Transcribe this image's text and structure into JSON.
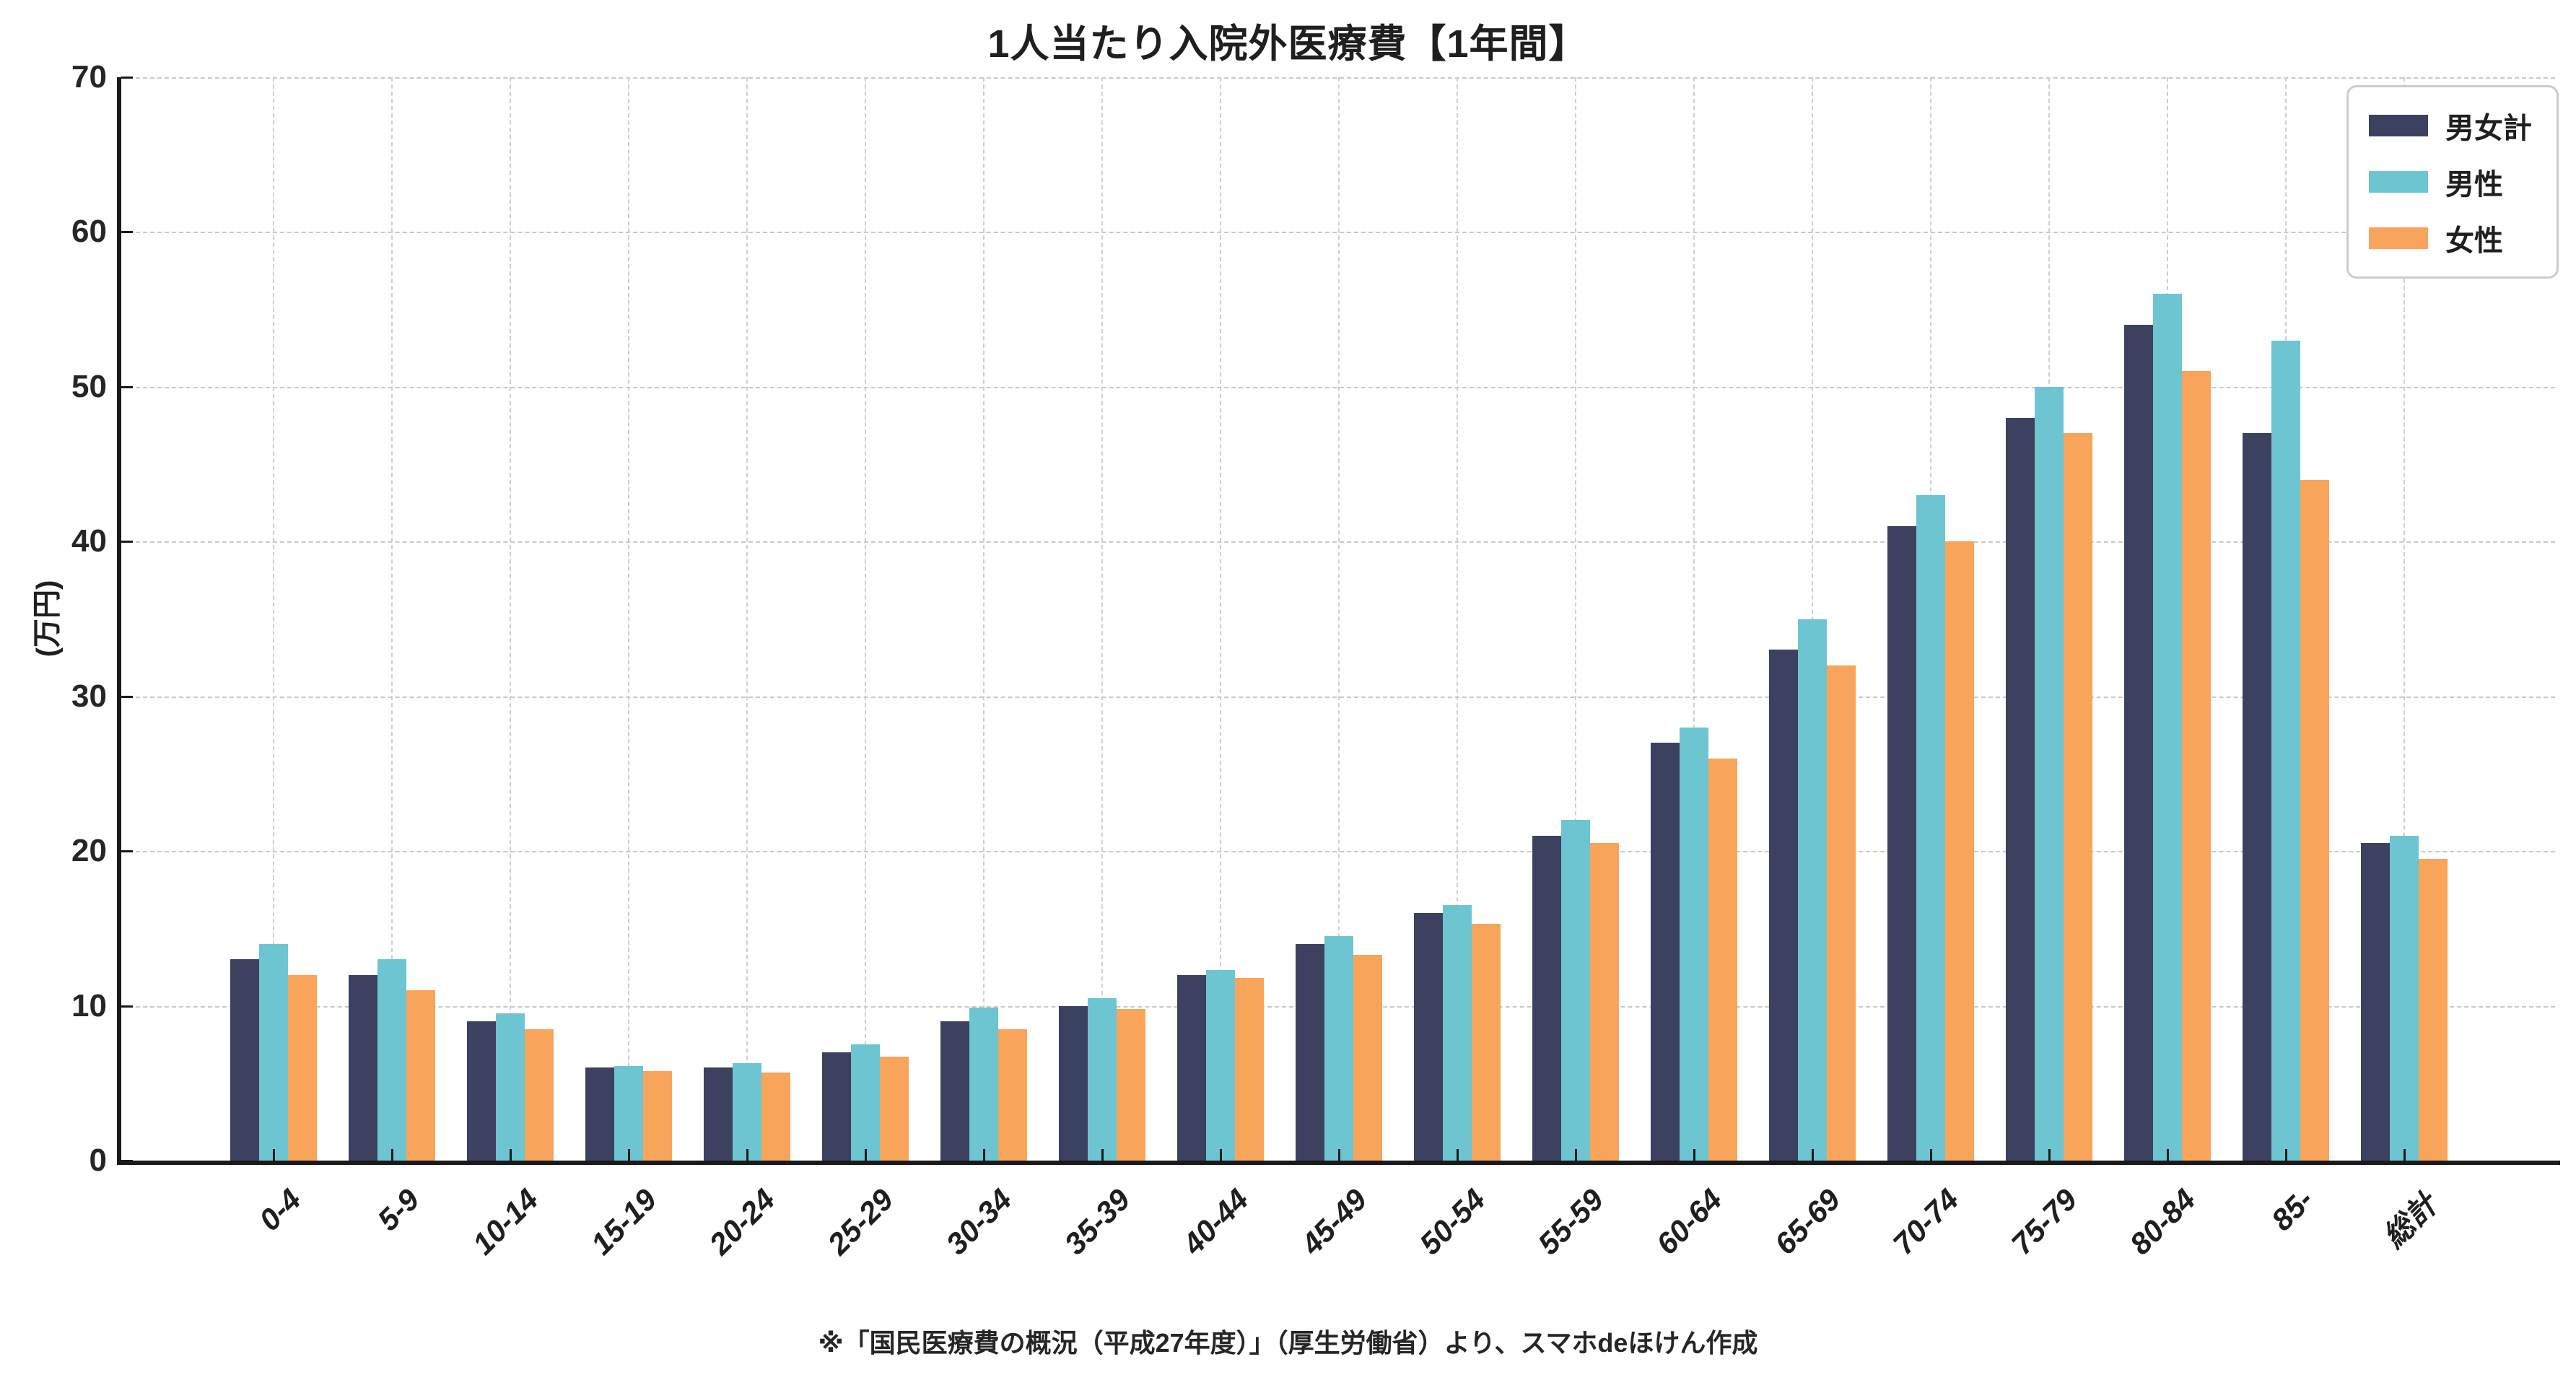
{
  "header": {
    "title": "1人当たり入院外医療費【1年間】"
  },
  "y_axis": {
    "label": "(万円)",
    "ticks": [
      0,
      10,
      20,
      30,
      40,
      50,
      60,
      70
    ],
    "max": 70
  },
  "footer": {
    "note": "※「国民医療費の概況（平成27年度）」（厚生労働省）より、スマホdeほけん作成"
  },
  "colors": {
    "total": "#3c415f",
    "male": "#6cc5d1",
    "female": "#f8a45b",
    "grid": "#c9c9c9",
    "axis": "#1a1a1a"
  },
  "chart_data": {
    "type": "bar",
    "title": "1人当たり入院外医療費【1年間】",
    "xlabel": "",
    "ylabel": "(万円)",
    "ylim": [
      0,
      70
    ],
    "grid": true,
    "legend_position": "upper right",
    "categories": [
      "0-4",
      "5-9",
      "10-14",
      "15-19",
      "20-24",
      "25-29",
      "30-34",
      "35-39",
      "40-44",
      "45-49",
      "50-54",
      "55-59",
      "60-64",
      "65-69",
      "70-74",
      "75-79",
      "80-84",
      "85-",
      "総計"
    ],
    "series": [
      {
        "name": "男女計",
        "color": "#3c415f",
        "values": [
          13,
          12,
          9,
          6,
          6,
          7,
          9,
          10,
          12,
          14,
          16,
          21,
          27,
          33,
          41,
          48,
          54,
          47,
          20.5
        ]
      },
      {
        "name": "男性",
        "color": "#6cc5d1",
        "values": [
          14,
          13,
          9.5,
          6.1,
          6.3,
          7.5,
          9.9,
          10.5,
          12.3,
          14.5,
          16.5,
          22,
          28,
          35,
          43,
          50,
          56,
          53,
          21
        ]
      },
      {
        "name": "女性",
        "color": "#f8a45b",
        "values": [
          12,
          11,
          8.5,
          5.8,
          5.7,
          6.7,
          8.5,
          9.8,
          11.8,
          13.3,
          15.3,
          20.5,
          26,
          32,
          40,
          47,
          51,
          44,
          19.5
        ]
      }
    ]
  }
}
